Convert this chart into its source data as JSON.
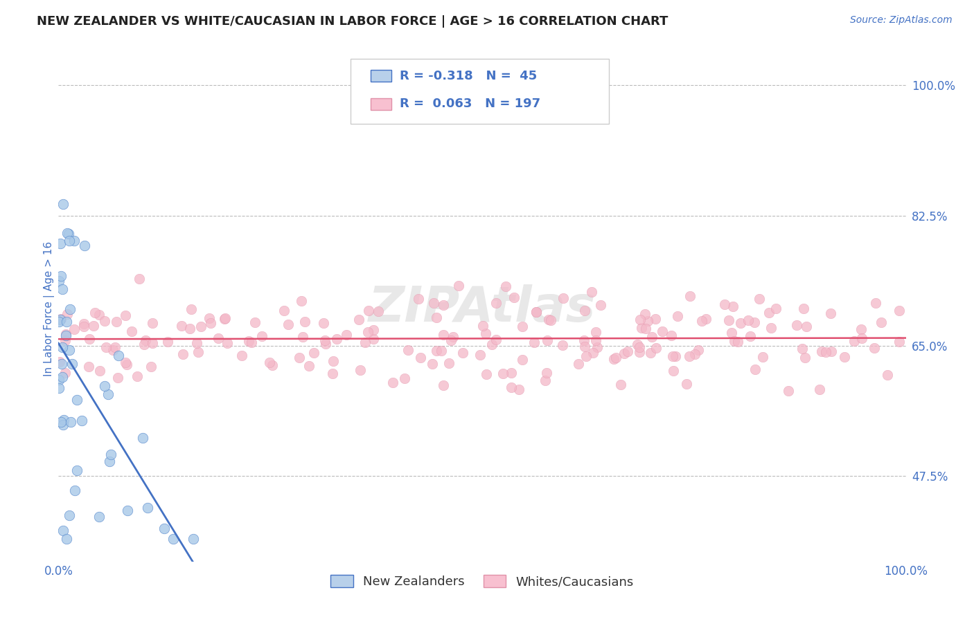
{
  "title": "NEW ZEALANDER VS WHITE/CAUCASIAN IN LABOR FORCE | AGE > 16 CORRELATION CHART",
  "source_text": "Source: ZipAtlas.com",
  "ylabel": "In Labor Force | Age > 16",
  "ytick_labels": [
    "47.5%",
    "65.0%",
    "82.5%",
    "100.0%"
  ],
  "ytick_values": [
    0.475,
    0.65,
    0.825,
    1.0
  ],
  "r_nz": -0.318,
  "n_nz": 45,
  "r_wc": 0.063,
  "n_wc": 197,
  "color_nz": "#a8c8e8",
  "color_nz_edge": "#5588cc",
  "color_nz_line": "#4472C4",
  "color_wc": "#f4b8c8",
  "color_wc_edge": "#e090a8",
  "color_wc_line": "#e05070",
  "watermark": "ZIPAtlas",
  "legend_blue_patch": "#b8d0ea",
  "legend_pink_patch": "#f8c0d0",
  "legend_text_color": "#4472C4",
  "background_color": "#ffffff",
  "xlim": [
    0.0,
    1.0
  ],
  "ylim": [
    0.36,
    1.04
  ]
}
